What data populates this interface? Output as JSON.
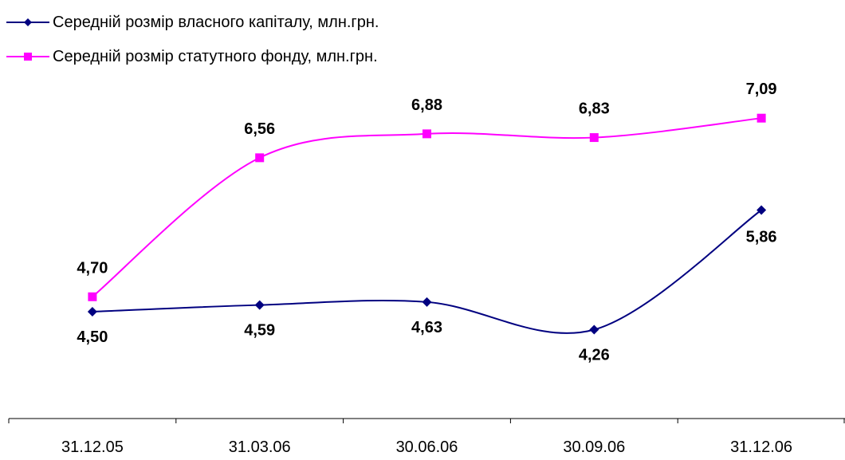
{
  "chart_data": {
    "type": "line",
    "categories": [
      "31.12.05",
      "31.03.06",
      "30.06.06",
      "30.09.06",
      "31.12.06"
    ],
    "series": [
      {
        "name": "Середній розмір власного капіталу, млн.грн.",
        "values": [
          4.5,
          4.59,
          4.63,
          4.26,
          5.86
        ],
        "labels": [
          "4,50",
          "4,59",
          "4,63",
          "4,26",
          "5,86"
        ],
        "color": "#000080",
        "marker": "diamond"
      },
      {
        "name": "Середній розмір статутного фонду, млн.грн.",
        "values": [
          4.7,
          6.56,
          6.88,
          6.83,
          7.09
        ],
        "labels": [
          "4,70",
          "6,56",
          "6,88",
          "6,83",
          "7,09"
        ],
        "color": "#ff00ff",
        "marker": "square"
      }
    ],
    "legend": "top-left",
    "grid": false,
    "ylim": [
      3.3,
      7.5
    ]
  }
}
